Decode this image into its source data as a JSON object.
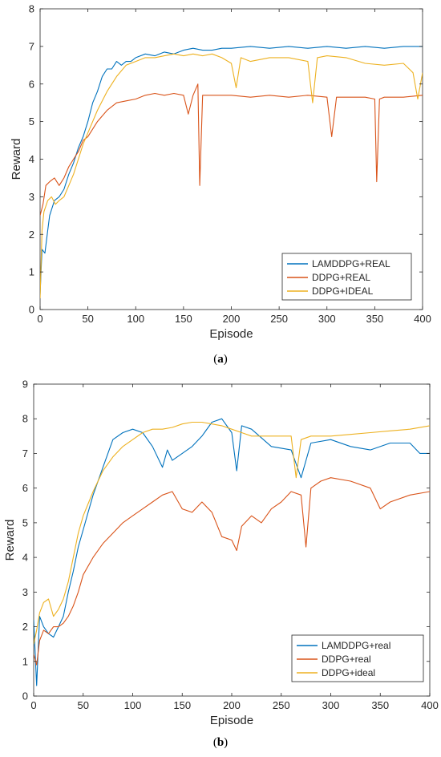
{
  "chart_data": [
    {
      "type": "line",
      "caption_prefix": "(",
      "caption_letter": "a",
      "caption_suffix": ")",
      "xlabel": "Episode",
      "ylabel": "Reward",
      "xlim": [
        0,
        400
      ],
      "ylim": [
        0,
        8
      ],
      "xticks": [
        0,
        50,
        100,
        150,
        200,
        250,
        300,
        350,
        400
      ],
      "yticks": [
        0,
        1,
        2,
        3,
        4,
        5,
        6,
        7,
        8
      ],
      "grid": false,
      "legend_position": "bottom-right",
      "series": [
        {
          "name": "LAMDDPG+REAL",
          "color": "#0072BD",
          "x": [
            0,
            2,
            5,
            8,
            10,
            15,
            20,
            25,
            30,
            35,
            40,
            45,
            50,
            55,
            60,
            65,
            70,
            75,
            80,
            85,
            90,
            95,
            100,
            110,
            120,
            130,
            140,
            150,
            160,
            170,
            180,
            190,
            200,
            220,
            240,
            260,
            280,
            300,
            320,
            340,
            360,
            380,
            400
          ],
          "y": [
            0.4,
            1.6,
            1.5,
            2.1,
            2.5,
            2.9,
            3.0,
            3.2,
            3.6,
            3.9,
            4.3,
            4.6,
            5.0,
            5.5,
            5.8,
            6.2,
            6.4,
            6.4,
            6.6,
            6.5,
            6.6,
            6.6,
            6.7,
            6.8,
            6.75,
            6.85,
            6.8,
            6.9,
            6.95,
            6.9,
            6.9,
            6.95,
            6.95,
            7.0,
            6.95,
            7.0,
            6.95,
            7.0,
            6.95,
            7.0,
            6.95,
            7.0,
            7.0
          ]
        },
        {
          "name": "DDPG+REAL",
          "color": "#D95319",
          "x": [
            0,
            3,
            6,
            10,
            15,
            20,
            25,
            30,
            35,
            40,
            45,
            50,
            60,
            70,
            80,
            90,
            100,
            110,
            120,
            130,
            140,
            150,
            155,
            160,
            165,
            167,
            170,
            180,
            200,
            220,
            240,
            260,
            280,
            300,
            305,
            310,
            320,
            340,
            350,
            352,
            355,
            360,
            380,
            400
          ],
          "y": [
            2.5,
            2.8,
            3.3,
            3.4,
            3.5,
            3.3,
            3.5,
            3.8,
            4.0,
            4.2,
            4.5,
            4.6,
            5.0,
            5.3,
            5.5,
            5.55,
            5.6,
            5.7,
            5.75,
            5.7,
            5.75,
            5.7,
            5.2,
            5.7,
            6.0,
            3.3,
            5.7,
            5.7,
            5.7,
            5.65,
            5.7,
            5.65,
            5.7,
            5.65,
            4.6,
            5.65,
            5.65,
            5.65,
            5.6,
            3.4,
            5.6,
            5.65,
            5.65,
            5.7
          ]
        },
        {
          "name": "DDPG+IDEAL",
          "color": "#EDB120",
          "x": [
            0,
            2,
            4,
            8,
            12,
            16,
            20,
            25,
            30,
            35,
            40,
            45,
            50,
            60,
            70,
            80,
            90,
            100,
            110,
            120,
            130,
            140,
            150,
            160,
            170,
            180,
            190,
            200,
            205,
            210,
            220,
            240,
            260,
            280,
            285,
            290,
            300,
            320,
            340,
            360,
            380,
            390,
            395,
            400
          ],
          "y": [
            0.3,
            2.1,
            2.6,
            2.9,
            3.0,
            2.8,
            2.9,
            3.0,
            3.3,
            3.6,
            4.0,
            4.4,
            4.7,
            5.3,
            5.8,
            6.2,
            6.5,
            6.6,
            6.7,
            6.7,
            6.75,
            6.8,
            6.75,
            6.8,
            6.75,
            6.8,
            6.7,
            6.55,
            5.9,
            6.7,
            6.6,
            6.7,
            6.7,
            6.6,
            5.5,
            6.7,
            6.75,
            6.7,
            6.55,
            6.5,
            6.55,
            6.3,
            5.6,
            6.3
          ]
        }
      ]
    },
    {
      "type": "line",
      "caption_prefix": "(",
      "caption_letter": "b",
      "caption_suffix": ")",
      "xlabel": "Episode",
      "ylabel": "Reward",
      "xlim": [
        0,
        400
      ],
      "ylim": [
        0,
        9
      ],
      "xticks": [
        0,
        50,
        100,
        150,
        200,
        250,
        300,
        350,
        400
      ],
      "yticks": [
        0,
        1,
        2,
        3,
        4,
        5,
        6,
        7,
        8,
        9
      ],
      "grid": false,
      "legend_position": "bottom-right",
      "series": [
        {
          "name": "LAMDDPG+real",
          "color": "#0072BD",
          "x": [
            0,
            3,
            6,
            10,
            15,
            20,
            25,
            30,
            35,
            40,
            45,
            50,
            55,
            60,
            70,
            80,
            90,
            100,
            110,
            120,
            130,
            135,
            140,
            150,
            160,
            170,
            180,
            190,
            200,
            205,
            210,
            220,
            240,
            260,
            270,
            280,
            300,
            320,
            340,
            360,
            380,
            390,
            400
          ],
          "y": [
            2.2,
            0.3,
            2.3,
            2.0,
            1.8,
            1.7,
            2.0,
            2.3,
            3.0,
            3.6,
            4.3,
            4.8,
            5.3,
            5.8,
            6.6,
            7.4,
            7.6,
            7.7,
            7.6,
            7.2,
            6.6,
            7.1,
            6.8,
            7.0,
            7.2,
            7.5,
            7.9,
            8.0,
            7.6,
            6.5,
            7.8,
            7.7,
            7.2,
            7.1,
            6.3,
            7.3,
            7.4,
            7.2,
            7.1,
            7.3,
            7.3,
            7.0,
            7.0
          ]
        },
        {
          "name": "DDPG+real",
          "color": "#D95319",
          "x": [
            0,
            3,
            6,
            10,
            15,
            20,
            25,
            30,
            35,
            40,
            45,
            50,
            60,
            70,
            80,
            90,
            100,
            110,
            120,
            130,
            140,
            150,
            160,
            170,
            180,
            190,
            200,
            205,
            210,
            220,
            230,
            240,
            250,
            260,
            270,
            275,
            280,
            290,
            300,
            320,
            340,
            350,
            360,
            380,
            400
          ],
          "y": [
            1.2,
            0.9,
            1.6,
            1.9,
            1.8,
            2.0,
            2.0,
            2.1,
            2.3,
            2.6,
            3.0,
            3.5,
            4.0,
            4.4,
            4.7,
            5.0,
            5.2,
            5.4,
            5.6,
            5.8,
            5.9,
            5.4,
            5.3,
            5.6,
            5.3,
            4.6,
            4.5,
            4.2,
            4.9,
            5.2,
            5.0,
            5.4,
            5.6,
            5.9,
            5.8,
            4.3,
            6.0,
            6.2,
            6.3,
            6.2,
            6.0,
            5.4,
            5.6,
            5.8,
            5.9
          ]
        },
        {
          "name": "DDPG+ideal",
          "color": "#EDB120",
          "x": [
            0,
            3,
            6,
            10,
            15,
            20,
            25,
            30,
            35,
            40,
            45,
            50,
            60,
            70,
            80,
            90,
            100,
            110,
            120,
            130,
            140,
            150,
            160,
            170,
            180,
            190,
            200,
            210,
            220,
            240,
            260,
            265,
            270,
            280,
            300,
            320,
            340,
            360,
            380,
            400
          ],
          "y": [
            1.5,
            1.9,
            2.4,
            2.7,
            2.8,
            2.3,
            2.5,
            2.8,
            3.3,
            4.0,
            4.7,
            5.2,
            5.9,
            6.5,
            6.9,
            7.2,
            7.4,
            7.6,
            7.7,
            7.7,
            7.75,
            7.85,
            7.9,
            7.9,
            7.85,
            7.8,
            7.7,
            7.6,
            7.5,
            7.5,
            7.5,
            6.3,
            7.4,
            7.5,
            7.5,
            7.55,
            7.6,
            7.65,
            7.7,
            7.8
          ]
        }
      ]
    }
  ]
}
